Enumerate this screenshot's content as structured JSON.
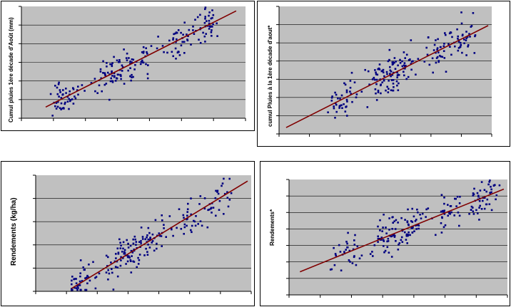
{
  "colors": {
    "plot_bg": "#c0c0c0",
    "points": "#000080",
    "regression": "#800000",
    "gridline": "#000000"
  },
  "chart_data": [
    {
      "type": "scatter",
      "ylabel": "Cumul pluies 1ère décade d'Août (mm)",
      "x_ticks": 7,
      "y_ticks": 6,
      "xlim": [
        0,
        6
      ],
      "ylim": [
        0,
        5
      ],
      "trend": {
        "x0": 0.65,
        "y0": 0.5,
        "x1": 5.75,
        "y1": 4.8
      },
      "cluster_centres": [
        1.2,
        2.3,
        2.7,
        3.2,
        4.2,
        5.0
      ],
      "n_points": 220
    },
    {
      "type": "scatter",
      "ylabel": "cumul Pluies à la 1ère décade d'aout*",
      "x_ticks": 7,
      "y_ticks": 7,
      "xlim": [
        0,
        6
      ],
      "ylim": [
        0,
        6
      ],
      "trend": {
        "x0": 0.2,
        "y0": 0.3,
        "x1": 5.9,
        "y1": 5.1
      },
      "cluster_centres": [
        1.8,
        2.8,
        3.2,
        3.5,
        4.4,
        5.2
      ],
      "n_points": 220
    },
    {
      "type": "scatter",
      "ylabel": "Rendements (kg/ha)",
      "x_ticks": 7,
      "y_ticks": 5,
      "xlim": [
        0,
        6
      ],
      "ylim": [
        0,
        4
      ],
      "trend": {
        "x0": 1.0,
        "y0": 0.1,
        "x1": 5.9,
        "y1": 3.8
      },
      "cluster_centres": [
        1.3,
        2.3,
        2.7,
        3.2,
        4.2,
        5.1
      ],
      "n_points": 220
    },
    {
      "type": "scatter",
      "ylabel": "Rendements*",
      "x_ticks": 7,
      "y_ticks": 7,
      "xlim": [
        0,
        6
      ],
      "ylim": [
        0,
        6
      ],
      "trend": {
        "x0": 0.3,
        "y0": 1.2,
        "x1": 5.9,
        "y1": 5.5
      },
      "cluster_centres": [
        1.6,
        2.6,
        3.1,
        3.4,
        4.4,
        5.3
      ],
      "n_points": 220
    }
  ]
}
